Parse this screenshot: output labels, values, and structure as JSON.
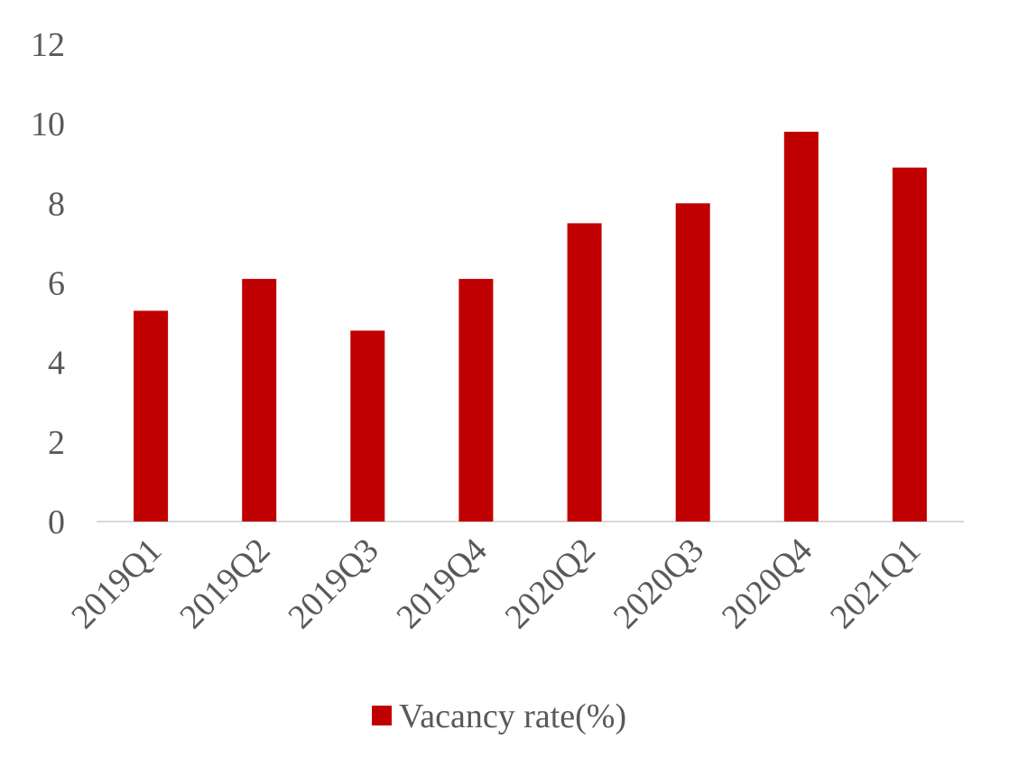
{
  "chart_data": {
    "type": "bar",
    "categories": [
      "2019Q1",
      "2019Q2",
      "2019Q3",
      "2019Q4",
      "2020Q2",
      "2020Q3",
      "2020Q4",
      "2021Q1"
    ],
    "series": [
      {
        "name": "Vacancy rate(%)",
        "values": [
          5.3,
          6.1,
          4.8,
          6.1,
          7.5,
          8.0,
          9.8,
          8.9
        ],
        "color": "#C00000"
      }
    ],
    "title": "",
    "xlabel": "",
    "ylabel": "",
    "ylim": [
      0,
      12
    ],
    "yticks": [
      0,
      2,
      4,
      6,
      8,
      10,
      12
    ],
    "grid": false,
    "legend_position": "bottom",
    "axis_color": "#d9d9d9",
    "text_color": "#595959"
  }
}
